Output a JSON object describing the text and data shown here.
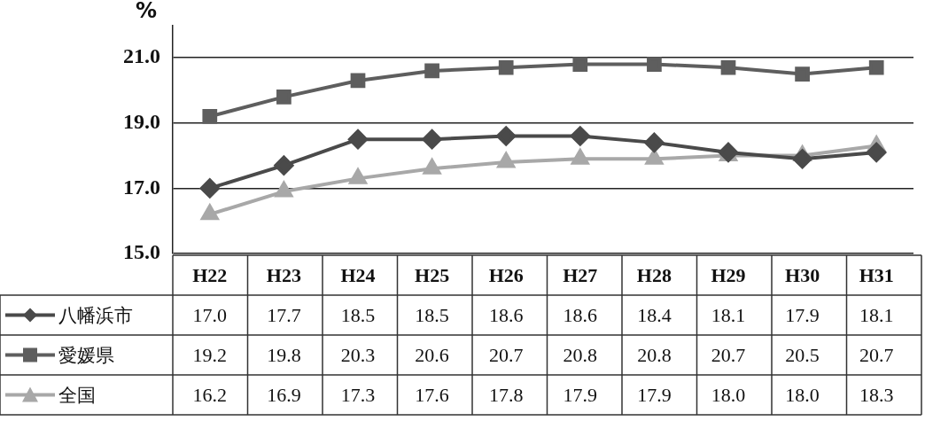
{
  "chart_data": {
    "type": "line",
    "ylabel": "%",
    "categories": [
      "H22",
      "H23",
      "H24",
      "H25",
      "H26",
      "H27",
      "H28",
      "H29",
      "H30",
      "H31"
    ],
    "series": [
      {
        "name": "八幡浜市",
        "color": "#4a4a4a",
        "marker": "diamond",
        "values": [
          17.0,
          17.7,
          18.5,
          18.5,
          18.6,
          18.6,
          18.4,
          18.1,
          17.9,
          18.1
        ],
        "value_labels": [
          "17.0",
          "17.7",
          "18.5",
          "18.5",
          "18.6",
          "18.6",
          "18.4",
          "18.1",
          "17.9",
          "18.1"
        ]
      },
      {
        "name": "愛媛県",
        "color": "#5e5e5e",
        "marker": "square",
        "values": [
          19.2,
          19.8,
          20.3,
          20.6,
          20.7,
          20.8,
          20.8,
          20.7,
          20.5,
          20.7
        ],
        "value_labels": [
          "19.2",
          "19.8",
          "20.3",
          "20.6",
          "20.7",
          "20.8",
          "20.8",
          "20.7",
          "20.5",
          "20.7"
        ]
      },
      {
        "name": "全国",
        "color": "#a8a8a8",
        "marker": "triangle",
        "values": [
          16.2,
          16.9,
          17.3,
          17.6,
          17.8,
          17.9,
          17.9,
          18.0,
          18.0,
          18.3
        ],
        "value_labels": [
          "16.2",
          "16.9",
          "17.3",
          "17.6",
          "17.8",
          "17.9",
          "17.9",
          "18.0",
          "18.0",
          "18.3"
        ]
      }
    ],
    "ylim": [
      15,
      22
    ],
    "yticks": [
      {
        "value": 15,
        "label": "15.0"
      },
      {
        "value": 17,
        "label": "17.0"
      },
      {
        "value": 19,
        "label": "19.0"
      },
      {
        "value": 21,
        "label": "21.0"
      }
    ],
    "grid": "y",
    "legend": "bottom"
  }
}
